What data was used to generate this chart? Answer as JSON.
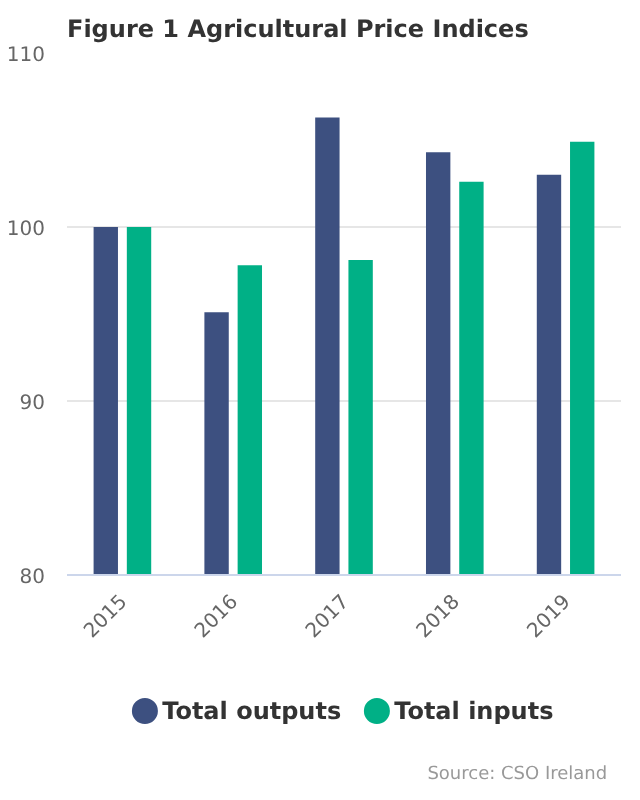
{
  "chart_data": {
    "type": "bar",
    "title": "Figure 1 Agricultural Price Indices",
    "categories": [
      "2015",
      "2016",
      "2017",
      "2018",
      "2019"
    ],
    "series": [
      {
        "name": "Total outputs",
        "color": "#3d5080",
        "values": [
          100.0,
          95.1,
          106.3,
          104.3,
          103.0
        ]
      },
      {
        "name": "Total inputs",
        "color": "#00b086",
        "values": [
          100.0,
          97.8,
          98.1,
          102.6,
          104.9
        ]
      }
    ],
    "ylim": [
      80,
      110
    ],
    "yticks": [
      80,
      90,
      100,
      110
    ],
    "grid": "y",
    "legend": "bottom",
    "annotations": [
      "Source: CSO Ireland"
    ]
  }
}
